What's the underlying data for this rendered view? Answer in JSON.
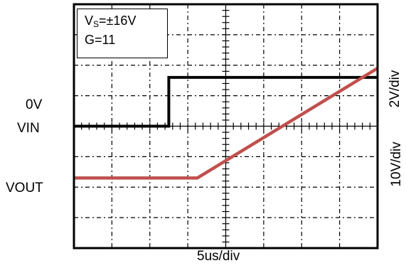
{
  "chart_data": {
    "type": "line",
    "title": "",
    "divisions": {
      "x": 8,
      "y": 8
    },
    "xlabel": "5us/div",
    "annotations": {
      "supply_prefix": "V",
      "supply_subscript": "S",
      "supply_value": "=±16V",
      "gain": "G=11"
    },
    "left_labels": {
      "zero_ref": "0V",
      "vin": "VIN",
      "vout": "VOUT"
    },
    "right_labels": {
      "vin_scale": "2V/div",
      "vout_scale": "10V/div"
    },
    "grid": true,
    "series": [
      {
        "name": "VIN",
        "color": "#000000",
        "x": [
          0,
          2.5,
          2.5,
          8
        ],
        "y": [
          0,
          0,
          1.6,
          1.6
        ]
      },
      {
        "name": "VOUT",
        "color": "#c0504d",
        "x": [
          0,
          3.25,
          8
        ],
        "y": [
          -1.7,
          -1.7,
          1.9
        ]
      }
    ]
  }
}
